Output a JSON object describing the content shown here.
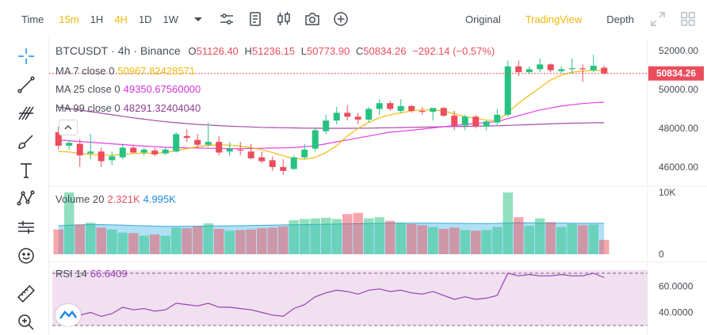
{
  "toolbar": {
    "time_label": "Time",
    "intervals": [
      "15m",
      "1H",
      "4H",
      "1D",
      "1W"
    ],
    "active_interval_index": 2,
    "highlight_interval_index": 0,
    "views": [
      "Original",
      "TradingView",
      "Depth"
    ],
    "active_view_index": 1,
    "icons": [
      "chevron-down-icon",
      "indicators-icon",
      "templates-icon",
      "candle-type-icon",
      "camera-icon",
      "add-icon",
      "fullscreen-icon",
      "grid-layout-icon"
    ]
  },
  "sidebar": {
    "icons": [
      "crosshair-icon",
      "trend-line-icon",
      "fib-icon",
      "brush-icon",
      "text-icon",
      "pattern-icon",
      "measure-icon",
      "emoji-icon",
      "ruler-icon",
      "zoom-icon"
    ]
  },
  "header": {
    "symbol": "BTCUSDT",
    "interval": "4h",
    "exchange": "Binance",
    "open_label": "O",
    "open": "51126.40",
    "high_label": "H",
    "high": "51236.15",
    "low_label": "L",
    "low": "50773.90",
    "close_label": "C",
    "close": "50834.26",
    "change": "−292.14 (−0.57%)"
  },
  "ma": [
    {
      "label": "MA 7 close 0",
      "value": "50967.82428571",
      "color": "#f0b90b"
    },
    {
      "label": "MA 25 close 0",
      "value": "49350.67560000",
      "color": "#d633d6"
    },
    {
      "label": "MA 99 close 0",
      "value": "48291.32404040",
      "color": "#b04ab0"
    }
  ],
  "volume": {
    "label": "Volume 20",
    "v1": "2.321K",
    "v2": "4.995K"
  },
  "rsi": {
    "label": "RSI 14",
    "value": "66.6409"
  },
  "price_tag": "50834.26",
  "colors": {
    "up": "#26c281",
    "down": "#eb4d5c",
    "accent": "#f0b90b",
    "ma25": "#e63de6",
    "ma99": "#a54ba5",
    "volume_ma": "#6dc6ec",
    "rsi": "#9c3fb8"
  },
  "chart_data": {
    "type": "candlestick",
    "price_axis": {
      "ticks": [
        46000,
        48000,
        50000,
        52000
      ],
      "labels": [
        "46000.00",
        "48000.00",
        "50000.00",
        "52000.00"
      ],
      "ylim": [
        45300,
        52500
      ]
    },
    "volume_axis": {
      "ticks": [
        0,
        10000
      ],
      "labels": [
        "0",
        "10K"
      ]
    },
    "rsi_axis": {
      "ticks": [
        40,
        60
      ],
      "labels": [
        "40.0000",
        "60.0000"
      ],
      "bands": [
        30,
        70
      ]
    },
    "candles": [
      {
        "o": 47800,
        "h": 48100,
        "l": 46900,
        "c": 47100
      },
      {
        "o": 47100,
        "h": 47400,
        "l": 46900,
        "c": 47250
      },
      {
        "o": 47200,
        "h": 47450,
        "l": 46000,
        "c": 46600
      },
      {
        "o": 46700,
        "h": 47700,
        "l": 46400,
        "c": 46800
      },
      {
        "o": 46800,
        "h": 47000,
        "l": 46000,
        "c": 46300
      },
      {
        "o": 46350,
        "h": 46800,
        "l": 46100,
        "c": 46550
      },
      {
        "o": 46500,
        "h": 47200,
        "l": 46400,
        "c": 47000
      },
      {
        "o": 47000,
        "h": 47100,
        "l": 46700,
        "c": 46750
      },
      {
        "o": 46750,
        "h": 47000,
        "l": 46600,
        "c": 46900
      },
      {
        "o": 46850,
        "h": 47000,
        "l": 46550,
        "c": 46650
      },
      {
        "o": 46700,
        "h": 47000,
        "l": 46600,
        "c": 46900
      },
      {
        "o": 46800,
        "h": 47800,
        "l": 46750,
        "c": 47700
      },
      {
        "o": 47600,
        "h": 47950,
        "l": 47300,
        "c": 47500
      },
      {
        "o": 47400,
        "h": 47700,
        "l": 47000,
        "c": 47150
      },
      {
        "o": 47150,
        "h": 48300,
        "l": 47050,
        "c": 47300
      },
      {
        "o": 47300,
        "h": 47600,
        "l": 46600,
        "c": 46750
      },
      {
        "o": 46800,
        "h": 47300,
        "l": 46550,
        "c": 46950
      },
      {
        "o": 46900,
        "h": 47300,
        "l": 46600,
        "c": 46850
      },
      {
        "o": 46800,
        "h": 47200,
        "l": 46400,
        "c": 46450
      },
      {
        "o": 46500,
        "h": 46800,
        "l": 46200,
        "c": 46300
      },
      {
        "o": 46350,
        "h": 46550,
        "l": 45800,
        "c": 46000
      },
      {
        "o": 46000,
        "h": 46400,
        "l": 45600,
        "c": 45800
      },
      {
        "o": 45900,
        "h": 46600,
        "l": 45850,
        "c": 46500
      },
      {
        "o": 46500,
        "h": 47200,
        "l": 46400,
        "c": 46900
      },
      {
        "o": 46950,
        "h": 48000,
        "l": 46800,
        "c": 47900
      },
      {
        "o": 47850,
        "h": 48700,
        "l": 47700,
        "c": 48400
      },
      {
        "o": 48400,
        "h": 49100,
        "l": 48200,
        "c": 48800
      },
      {
        "o": 48800,
        "h": 49200,
        "l": 48400,
        "c": 48600
      },
      {
        "o": 48600,
        "h": 48800,
        "l": 48200,
        "c": 48450
      },
      {
        "o": 48450,
        "h": 49100,
        "l": 48300,
        "c": 49000
      },
      {
        "o": 49000,
        "h": 49500,
        "l": 48700,
        "c": 49300
      },
      {
        "o": 49300,
        "h": 49400,
        "l": 48900,
        "c": 49000
      },
      {
        "o": 48900,
        "h": 49500,
        "l": 48800,
        "c": 49150
      },
      {
        "o": 49150,
        "h": 49200,
        "l": 48800,
        "c": 48900
      },
      {
        "o": 48900,
        "h": 49100,
        "l": 48700,
        "c": 48850
      },
      {
        "o": 48850,
        "h": 49000,
        "l": 48400,
        "c": 49050
      },
      {
        "o": 49050,
        "h": 49100,
        "l": 48600,
        "c": 48650
      },
      {
        "o": 48650,
        "h": 48900,
        "l": 47900,
        "c": 48150
      },
      {
        "o": 48150,
        "h": 48700,
        "l": 47900,
        "c": 48600
      },
      {
        "o": 48600,
        "h": 48700,
        "l": 48000,
        "c": 48100
      },
      {
        "o": 48100,
        "h": 48400,
        "l": 47900,
        "c": 48350
      },
      {
        "o": 48300,
        "h": 49000,
        "l": 48150,
        "c": 48700
      },
      {
        "o": 48700,
        "h": 51500,
        "l": 48600,
        "c": 51200
      },
      {
        "o": 51200,
        "h": 51500,
        "l": 50700,
        "c": 50900
      },
      {
        "o": 50900,
        "h": 51200,
        "l": 50800,
        "c": 51050
      },
      {
        "o": 51050,
        "h": 51600,
        "l": 50900,
        "c": 51300
      },
      {
        "o": 51300,
        "h": 51350,
        "l": 50900,
        "c": 51000
      },
      {
        "o": 50950,
        "h": 51200,
        "l": 50850,
        "c": 51050
      },
      {
        "o": 51050,
        "h": 51600,
        "l": 50800,
        "c": 51100
      },
      {
        "o": 51100,
        "h": 51300,
        "l": 50400,
        "c": 51050
      },
      {
        "o": 51000,
        "h": 51800,
        "l": 50900,
        "c": 51230
      },
      {
        "o": 51126.4,
        "h": 51236.15,
        "l": 50773.9,
        "c": 50834.26
      }
    ],
    "ma7": [
      46800,
      46780,
      46700,
      46650,
      46620,
      46600,
      46650,
      46700,
      46720,
      46710,
      46750,
      46850,
      46950,
      47050,
      47120,
      47150,
      47130,
      47080,
      47000,
      46900,
      46750,
      46580,
      46450,
      46400,
      46500,
      46750,
      47100,
      47600,
      48000,
      48300,
      48550,
      48700,
      48800,
      48900,
      48950,
      48950,
      48900,
      48750,
      48600,
      48520,
      48420,
      48400,
      48800,
      49300,
      49700,
      50100,
      50500,
      50750,
      50900,
      50950,
      51000,
      50967.82
    ],
    "ma25": [
      47400,
      47360,
      47320,
      47280,
      47240,
      47200,
      47160,
      47120,
      47080,
      47050,
      47020,
      47000,
      46990,
      46980,
      46970,
      46960,
      46950,
      46950,
      46960,
      46970,
      46980,
      46990,
      47000,
      47050,
      47100,
      47200,
      47300,
      47400,
      47500,
      47600,
      47700,
      47800,
      47850,
      47900,
      47960,
      48020,
      48080,
      48140,
      48200,
      48250,
      48300,
      48350,
      48500,
      48650,
      48800,
      48950,
      49050,
      49150,
      49220,
      49280,
      49320,
      49350.68
    ],
    "ma99": [
      49100,
      49020,
      48940,
      48860,
      48780,
      48700,
      48620,
      48540,
      48470,
      48400,
      48340,
      48290,
      48240,
      48200,
      48170,
      48140,
      48110,
      48090,
      48070,
      48050,
      48040,
      48030,
      48020,
      48010,
      48005,
      48000,
      48000,
      48000,
      48005,
      48010,
      48020,
      48030,
      48040,
      48050,
      48060,
      48070,
      48080,
      48090,
      48100,
      48110,
      48120,
      48130,
      48150,
      48170,
      48190,
      48210,
      48230,
      48250,
      48265,
      48275,
      48285,
      48291.32
    ],
    "volume": [
      4000,
      10000,
      4800,
      5100,
      4300,
      4000,
      3500,
      3400,
      3000,
      3200,
      3000,
      4300,
      4200,
      4500,
      5000,
      4100,
      3800,
      3900,
      4000,
      4200,
      4300,
      4500,
      5500,
      5700,
      5800,
      5900,
      5700,
      6500,
      6700,
      5800,
      6000,
      5400,
      5100,
      4900,
      4700,
      4400,
      4100,
      4300,
      3900,
      3800,
      3900,
      4400,
      10000,
      6000,
      4600,
      5800,
      5200,
      4400,
      4900,
      4700,
      4800,
      2321
    ],
    "volume_ma": [
      4600,
      4700,
      4750,
      4800,
      4800,
      4750,
      4700,
      4650,
      4600,
      4550,
      4500,
      4500,
      4520,
      4540,
      4560,
      4580,
      4600,
      4620,
      4650,
      4680,
      4710,
      4740,
      4770,
      4800,
      4830,
      4860,
      4890,
      4920,
      4950,
      4980,
      5000,
      5010,
      5020,
      5030,
      5030,
      5020,
      5010,
      5000,
      4990,
      4980,
      4970,
      4990,
      5050,
      5080,
      5060,
      5040,
      5030,
      5020,
      5010,
      5000,
      4998,
      4995
    ],
    "rsi": [
      41,
      43,
      38,
      40,
      37,
      39,
      44,
      42,
      43,
      41,
      42,
      47,
      46,
      45,
      47,
      44,
      44,
      43,
      42,
      40,
      38,
      37,
      43,
      46,
      52,
      55,
      57,
      56,
      54,
      57,
      58,
      56,
      57,
      55,
      54,
      56,
      53,
      50,
      52,
      50,
      51,
      53,
      70,
      68,
      69,
      68,
      68,
      69,
      68,
      68,
      70,
      66.64
    ]
  }
}
